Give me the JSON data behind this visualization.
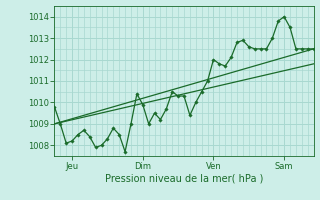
{
  "xlabel": "Pression niveau de la mer( hPa )",
  "bg_color": "#cdeee8",
  "grid_color": "#a8d8d0",
  "line_color": "#1a6b2a",
  "ylim": [
    1007.5,
    1014.5
  ],
  "yticks": [
    1008,
    1009,
    1010,
    1011,
    1012,
    1013,
    1014
  ],
  "xlim": [
    0,
    264
  ],
  "xtick_pos": [
    18,
    90,
    162,
    234
  ],
  "xtick_labels": [
    "Jeu",
    "Dim",
    "Ven",
    "Sam"
  ],
  "series_x": [
    0,
    6,
    12,
    18,
    24,
    30,
    36,
    42,
    48,
    54,
    60,
    66,
    72,
    78,
    84,
    90,
    96,
    102,
    108,
    114,
    120,
    126,
    132,
    138,
    144,
    150,
    156,
    162,
    168,
    174,
    180,
    186,
    192,
    198,
    204,
    210,
    216,
    222,
    228,
    234,
    240,
    246,
    252,
    258,
    264
  ],
  "series_y": [
    1009.8,
    1009.0,
    1008.1,
    1008.2,
    1008.5,
    1008.7,
    1008.4,
    1007.9,
    1008.0,
    1008.3,
    1008.8,
    1008.5,
    1007.7,
    1009.0,
    1010.4,
    1009.9,
    1009.0,
    1009.5,
    1009.2,
    1009.7,
    1010.5,
    1010.3,
    1010.3,
    1009.4,
    1010.0,
    1010.5,
    1011.0,
    1012.0,
    1011.8,
    1011.7,
    1012.1,
    1012.8,
    1012.9,
    1012.6,
    1012.5,
    1012.5,
    1012.5,
    1013.0,
    1013.8,
    1014.0,
    1013.5,
    1012.5,
    1012.5,
    1012.5,
    1012.5
  ],
  "trend1_x": [
    0,
    264
  ],
  "trend1_y": [
    1009.0,
    1012.5
  ],
  "trend2_x": [
    0,
    264
  ],
  "trend2_y": [
    1009.0,
    1011.8
  ],
  "xlabel_fontsize": 7,
  "tick_fontsize": 6
}
